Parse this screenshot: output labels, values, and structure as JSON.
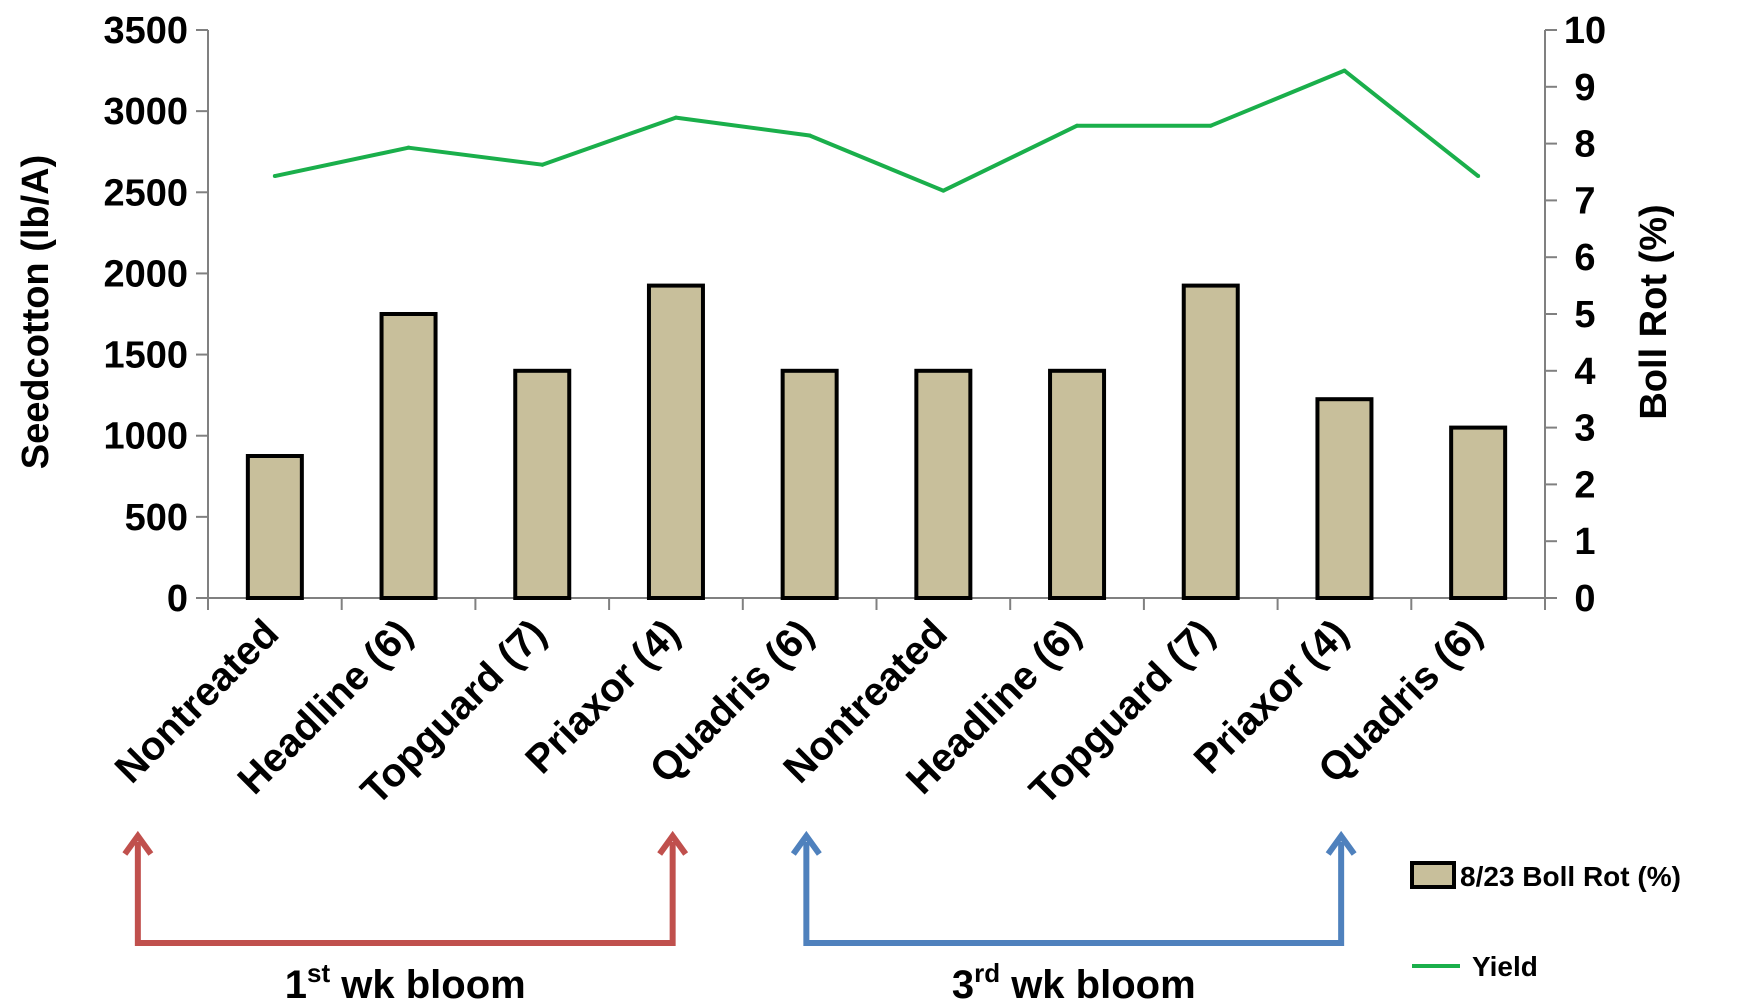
{
  "chart_data": {
    "type": "bar",
    "categories": [
      "Nontreated",
      "Headline (6)",
      "Topguard (7)",
      "Priaxor (4)",
      "Quadris (6)",
      "Nontreated",
      "Headline (6)",
      "Topguard (7)",
      "Priaxor (4)",
      "Quadris (6)"
    ],
    "series": [
      {
        "name": "8/23 Boll Rot (%)",
        "type": "bar",
        "axis": "right",
        "values": [
          2.5,
          5.0,
          4.0,
          5.5,
          4.0,
          4.0,
          4.0,
          5.5,
          3.5,
          3.0
        ],
        "color": "#c8bf9b"
      },
      {
        "name": "Yield",
        "type": "line",
        "axis": "left",
        "values": [
          2600,
          2775,
          2670,
          2960,
          2850,
          2510,
          2910,
          2910,
          3250,
          2600
        ],
        "color": "#1aaf4b"
      }
    ],
    "ylabel": "Seedcotton (lb/A)",
    "y2label": "Boll Rot (%)",
    "ylim": [
      0,
      3500
    ],
    "y2lim": [
      0,
      10
    ],
    "yticks": [
      "0",
      "500",
      "1000",
      "1500",
      "2000",
      "2500",
      "3000",
      "3500"
    ],
    "y2ticks": [
      "0",
      "1",
      "2",
      "3",
      "4",
      "5",
      "6",
      "7",
      "8",
      "9",
      "10"
    ],
    "legend_position": "bottom-right",
    "groups": [
      {
        "label_num": "1",
        "label_sup": "st",
        "label_rest": " wk bloom",
        "from": 0,
        "to": 4,
        "color": "#c0504d"
      },
      {
        "label_num": "3",
        "label_sup": "rd",
        "label_rest": " wk bloom",
        "from": 5,
        "to": 9,
        "color": "#4f81bd"
      }
    ]
  }
}
